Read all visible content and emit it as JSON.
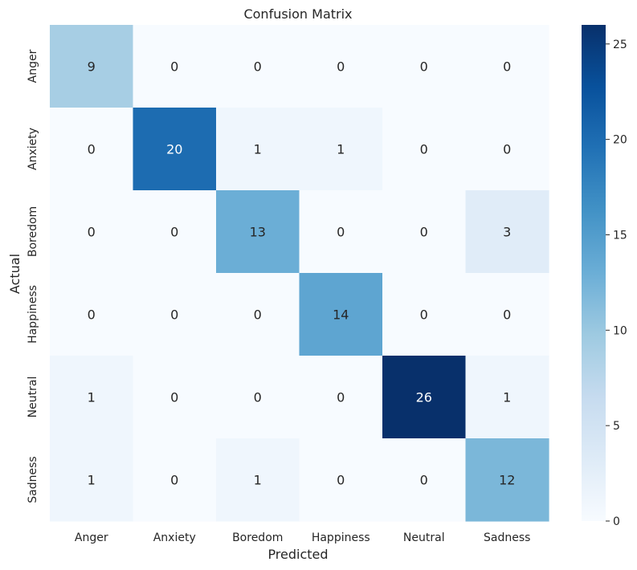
{
  "chart_data": {
    "type": "heatmap",
    "title": "Confusion Matrix",
    "xlabel": "Predicted",
    "ylabel": "Actual",
    "x_categories": [
      "Anger",
      "Anxiety",
      "Boredom",
      "Happiness",
      "Neutral",
      "Sadness"
    ],
    "y_categories": [
      "Anger",
      "Anxiety",
      "Boredom",
      "Happiness",
      "Neutral",
      "Sadness"
    ],
    "values": [
      [
        9,
        0,
        0,
        0,
        0,
        0
      ],
      [
        0,
        20,
        1,
        1,
        0,
        0
      ],
      [
        0,
        0,
        13,
        0,
        0,
        3
      ],
      [
        0,
        0,
        0,
        14,
        0,
        0
      ],
      [
        1,
        0,
        0,
        0,
        26,
        1
      ],
      [
        1,
        0,
        1,
        0,
        0,
        12
      ]
    ],
    "colormap": "Blues",
    "vmin": 0,
    "vmax": 26,
    "colorbar_ticks": [
      0,
      5,
      10,
      15,
      20,
      25
    ],
    "annotations": true
  }
}
